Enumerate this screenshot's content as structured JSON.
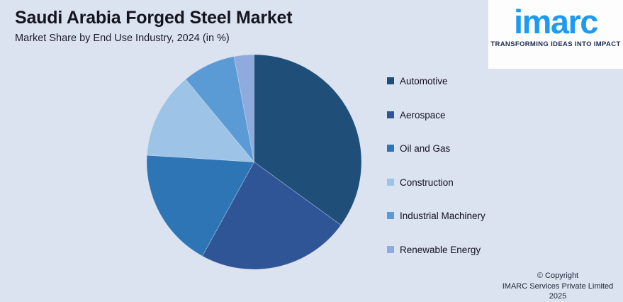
{
  "header": {
    "title": "Saudi Arabia Forged Steel Market",
    "subtitle": "Market Share by End Use Industry, 2024 (in %)"
  },
  "logo": {
    "brand": "imarc",
    "tagline": "TRANSFORMING IDEAS INTO IMPACT",
    "brand_color": "#1e9bf0",
    "tagline_color": "#1b2b4e"
  },
  "footer": {
    "line1": "© Copyright",
    "line2": "IMARC Services Private Limited 2025"
  },
  "background_color": "#dbe2f0",
  "chart_data": {
    "type": "pie",
    "title": "Saudi Arabia Forged Steel Market",
    "subtitle": "Market Share by End Use Industry, 2024 (in %)",
    "unit": "%",
    "categories": [
      "Automotive",
      "Aerospace",
      "Oil and Gas",
      "Construction",
      "Industrial Machinery",
      "Renewable Energy"
    ],
    "values": [
      35,
      23,
      18,
      13,
      8,
      3
    ],
    "colors": [
      "#1F4E79",
      "#2F5597",
      "#2E75B6",
      "#9DC3E6",
      "#5B9BD5",
      "#8FAADC"
    ],
    "start_angle_deg": 0,
    "direction": "clockwise",
    "legend_position": "right",
    "data_labels": false
  }
}
